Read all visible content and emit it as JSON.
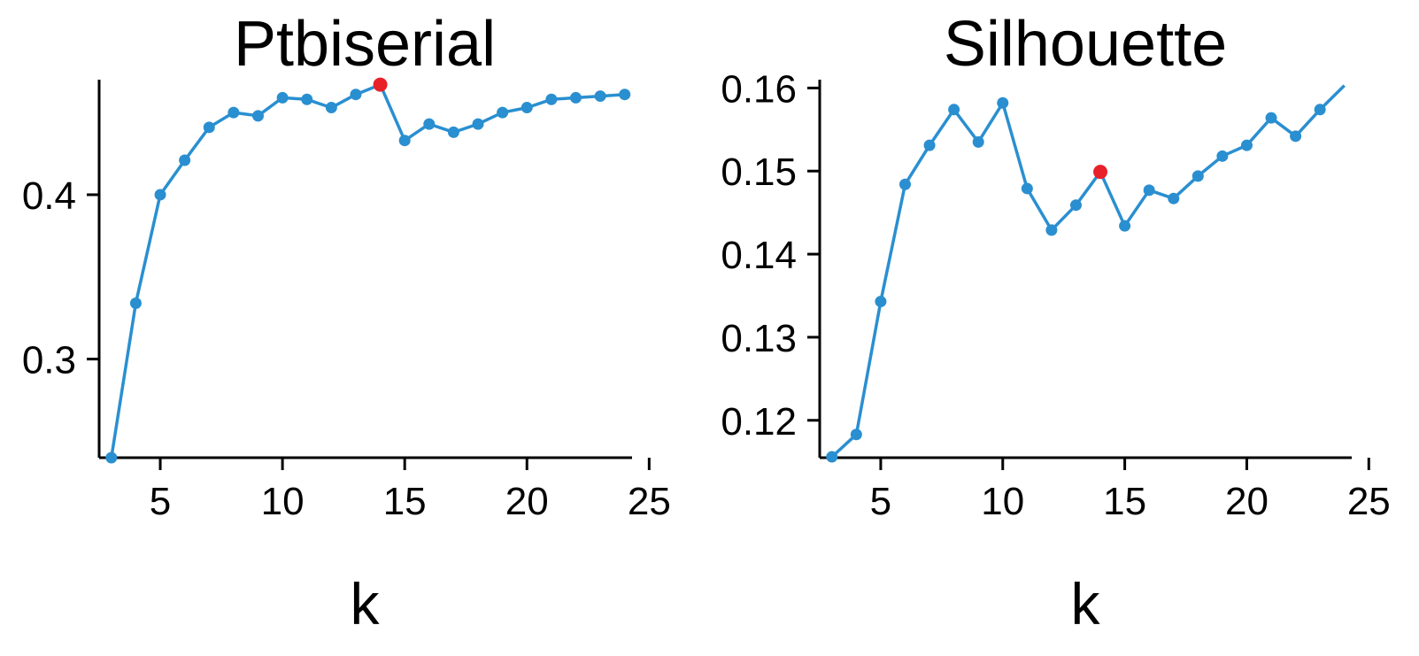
{
  "colors": {
    "line": "#2a8fd0",
    "highlight": "#e8202a",
    "axis": "#000000"
  },
  "chart_data": [
    {
      "type": "line",
      "title": "Ptbiserial",
      "xlabel": "k",
      "ylabel": "",
      "xlim": [
        2.5,
        24.3
      ],
      "ylim": [
        0.24,
        0.47
      ],
      "xticks": [
        5,
        10,
        15,
        20,
        25
      ],
      "yticks": [
        0.3,
        0.4
      ],
      "xtick_labels": [
        "5",
        "10",
        "15",
        "20",
        "25"
      ],
      "ytick_labels": [
        "0.3",
        "0.4"
      ],
      "grid": false,
      "series": [
        {
          "x": [
            3,
            4,
            5,
            6,
            7,
            8,
            9,
            10,
            11,
            12,
            13,
            14,
            15,
            16,
            17,
            18,
            19,
            20,
            21,
            22,
            23,
            24
          ],
          "y": [
            0.24,
            0.334,
            0.4,
            0.421,
            0.441,
            0.45,
            0.448,
            0.459,
            0.458,
            0.453,
            0.461,
            0.467,
            0.433,
            0.443,
            0.438,
            0.443,
            0.45,
            0.453,
            0.458,
            0.459,
            0.46,
            0.461
          ]
        }
      ],
      "highlight": {
        "x": 14,
        "y": 0.467
      }
    },
    {
      "type": "line",
      "title": "Silhouette",
      "xlabel": "k",
      "ylabel": "",
      "xlim": [
        2.5,
        24.3
      ],
      "ylim": [
        0.1155,
        0.161
      ],
      "xticks": [
        5,
        10,
        15,
        20,
        25
      ],
      "yticks": [
        0.12,
        0.13,
        0.14,
        0.15,
        0.16
      ],
      "xtick_labels": [
        "5",
        "10",
        "15",
        "20",
        "25"
      ],
      "ytick_labels": [
        "0.12",
        "0.13",
        "0.14",
        "0.15",
        "0.16"
      ],
      "grid": false,
      "series": [
        {
          "x": [
            3,
            4,
            5,
            6,
            7,
            8,
            9,
            10,
            11,
            12,
            13,
            14,
            15,
            16,
            17,
            18,
            19,
            20,
            21,
            22,
            23,
            24
          ],
          "y": [
            0.1156,
            0.1183,
            0.1343,
            0.1484,
            0.1531,
            0.1574,
            0.1535,
            0.1582,
            0.1479,
            0.1429,
            0.1459,
            0.1499,
            0.1434,
            0.1477,
            0.1467,
            0.1494,
            0.1518,
            0.1531,
            0.1564,
            0.1542,
            0.1574,
            0.1603
          ]
        }
      ],
      "highlight": {
        "x": 14,
        "y": 0.1499
      }
    }
  ]
}
